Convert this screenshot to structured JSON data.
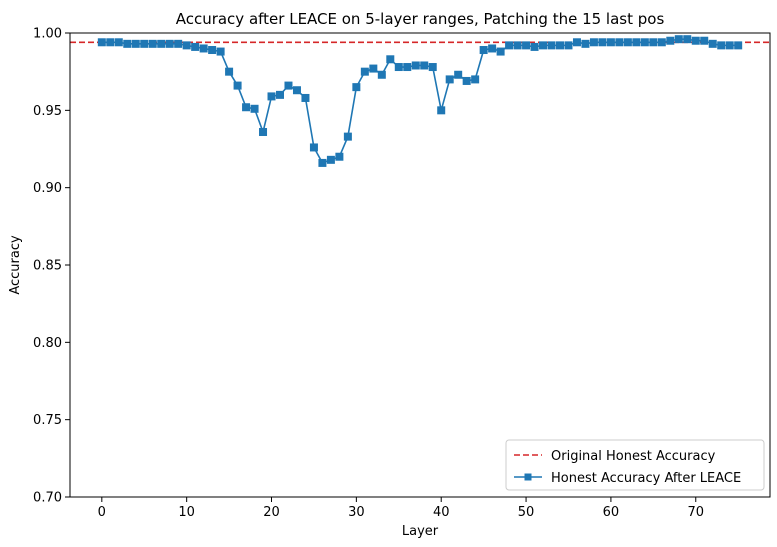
{
  "chart_data": {
    "type": "line",
    "title": "Accuracy after LEACE on 5-layer ranges, Patching the 15 last pos",
    "xlabel": "Layer",
    "ylabel": "Accuracy",
    "xlim": [
      -3.75,
      78.75
    ],
    "ylim": [
      0.7,
      1.0
    ],
    "xticks": [
      0,
      10,
      20,
      30,
      40,
      50,
      60,
      70
    ],
    "yticks": [
      0.7,
      0.75,
      0.8,
      0.85,
      0.9,
      0.95,
      1.0
    ],
    "ytick_labels": [
      "0.70",
      "0.75",
      "0.80",
      "0.85",
      "0.90",
      "0.95",
      "1.00"
    ],
    "grid": false,
    "legend_position": "lower-right",
    "reference_line": {
      "name": "Original Honest Accuracy",
      "y": 0.994,
      "color": "#d62728",
      "style": "dashed"
    },
    "series": [
      {
        "name": "Honest Accuracy After LEACE",
        "color": "#1f77b4",
        "marker": "square",
        "x": [
          0,
          1,
          2,
          3,
          4,
          5,
          6,
          7,
          8,
          9,
          10,
          11,
          12,
          13,
          14,
          15,
          16,
          17,
          18,
          19,
          20,
          21,
          22,
          23,
          24,
          25,
          26,
          27,
          28,
          29,
          30,
          31,
          32,
          33,
          34,
          35,
          36,
          37,
          38,
          39,
          40,
          41,
          42,
          43,
          44,
          45,
          46,
          47,
          48,
          49,
          50,
          51,
          52,
          53,
          54,
          55,
          56,
          57,
          58,
          59,
          60,
          61,
          62,
          63,
          64,
          65,
          66,
          67,
          68,
          69,
          70,
          71,
          72,
          73,
          74,
          75
        ],
        "values": [
          0.994,
          0.994,
          0.994,
          0.993,
          0.993,
          0.993,
          0.993,
          0.993,
          0.993,
          0.993,
          0.992,
          0.991,
          0.99,
          0.989,
          0.988,
          0.975,
          0.966,
          0.952,
          0.951,
          0.936,
          0.959,
          0.96,
          0.966,
          0.963,
          0.958,
          0.926,
          0.916,
          0.918,
          0.92,
          0.933,
          0.965,
          0.975,
          0.977,
          0.973,
          0.983,
          0.978,
          0.978,
          0.979,
          0.979,
          0.978,
          0.95,
          0.97,
          0.973,
          0.969,
          0.97,
          0.989,
          0.99,
          0.988,
          0.992,
          0.992,
          0.992,
          0.991,
          0.992,
          0.992,
          0.992,
          0.992,
          0.994,
          0.993,
          0.994,
          0.994,
          0.994,
          0.994,
          0.994,
          0.994,
          0.994,
          0.994,
          0.994,
          0.995,
          0.996,
          0.996,
          0.995,
          0.995,
          0.993,
          0.992,
          0.992,
          0.992
        ]
      }
    ]
  }
}
